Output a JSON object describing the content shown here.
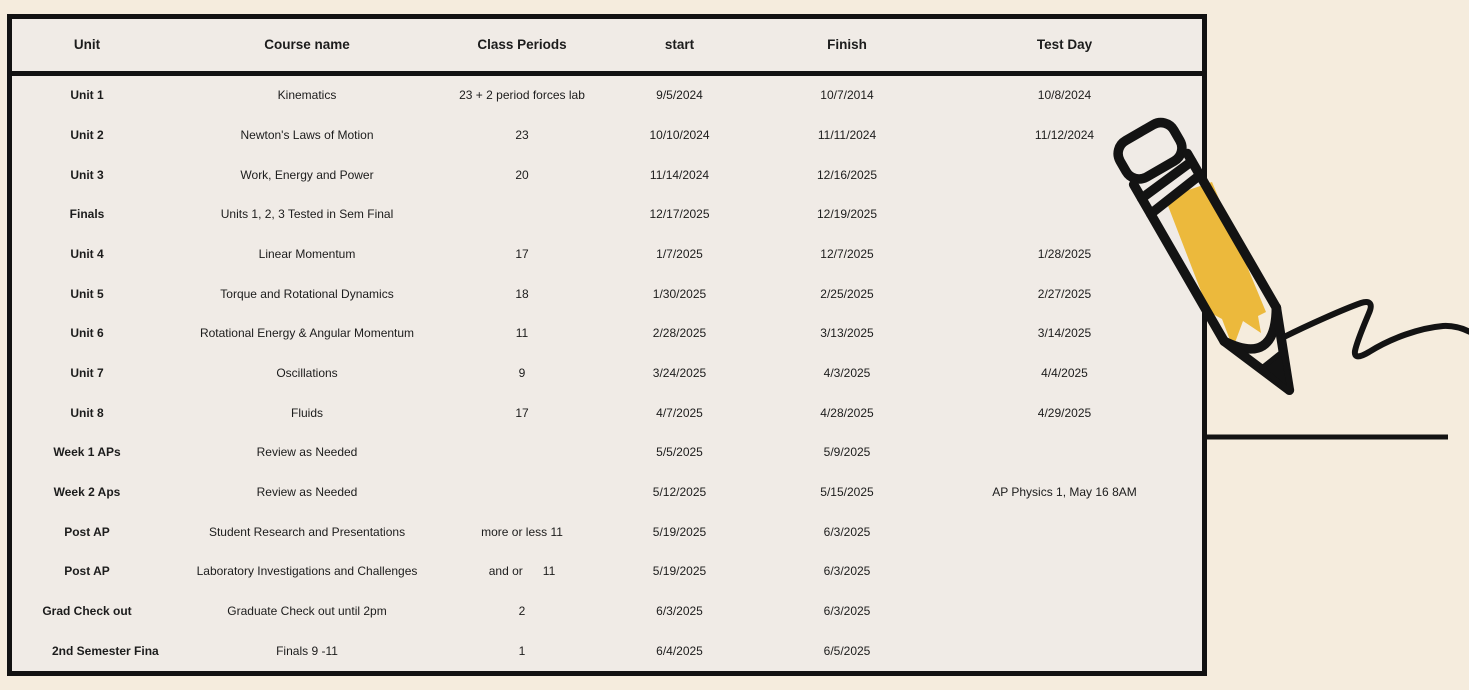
{
  "page": {
    "background_color": "#f5ecdd"
  },
  "table": {
    "background_color": "#f0ebe6",
    "border_color": "#121212",
    "columns": [
      "Unit",
      "Course name",
      "Class Periods",
      "start",
      "Finish",
      "Test Day"
    ],
    "rows": [
      [
        "Unit 1",
        "Kinematics",
        "23 + 2 period forces lab",
        "9/5/2024",
        "10/7/2014",
        "10/8/2024"
      ],
      [
        "Unit 2",
        "Newton's Laws of Motion",
        "23",
        "10/10/2024",
        "11/11/2024",
        "11/12/2024"
      ],
      [
        "Unit 3",
        "Work, Energy and Power",
        "20",
        "11/14/2024",
        "12/16/2025",
        ""
      ],
      [
        "Finals",
        "Units 1, 2, 3 Tested in Sem Final",
        "",
        "12/17/2025",
        "12/19/2025",
        ""
      ],
      [
        "Unit 4",
        "Linear Momentum",
        "17",
        "1/7/2025",
        "12/7/2025",
        "1/28/2025"
      ],
      [
        "Unit 5",
        "Torque and Rotational Dynamics",
        "18",
        "1/30/2025",
        "2/25/2025",
        "2/27/2025"
      ],
      [
        "Unit 6",
        "Rotational Energy & Angular Momentum",
        "11",
        "2/28/2025",
        "3/13/2025",
        "3/14/2025"
      ],
      [
        "Unit 7",
        "Oscillations",
        "9",
        "3/24/2025",
        "4/3/2025",
        "4/4/2025"
      ],
      [
        "Unit 8",
        "Fluids",
        "17",
        "4/7/2025",
        "4/28/2025",
        "4/29/2025"
      ],
      [
        "Week 1 APs",
        "Review as Needed",
        "",
        "5/5/2025",
        "5/9/2025",
        ""
      ],
      [
        "Week 2 Aps",
        "Review as Needed",
        "",
        "5/12/2025",
        "5/15/2025",
        "AP Physics 1, May 16 8AM"
      ],
      [
        "Post AP",
        "Student Research and Presentations",
        "more or less 11",
        "5/19/2025",
        "6/3/2025",
        ""
      ],
      [
        "Post AP",
        "Laboratory Investigations and Challenges",
        "and or      11",
        "5/19/2025",
        "6/3/2025",
        ""
      ],
      [
        "Grad Check out",
        "Graduate Check out until 2pm",
        "2",
        "6/3/2025",
        "6/3/2025",
        ""
      ],
      [
        "2nd Semester Fina",
        "Finals 9 -11",
        "1",
        "6/4/2025",
        "6/5/2025",
        ""
      ]
    ]
  },
  "decorations": {
    "pencil_icon": "hand-drawn pencil doodle writing a squiggle",
    "highlight_color": "#ecb93c",
    "ink_color": "#131313"
  }
}
